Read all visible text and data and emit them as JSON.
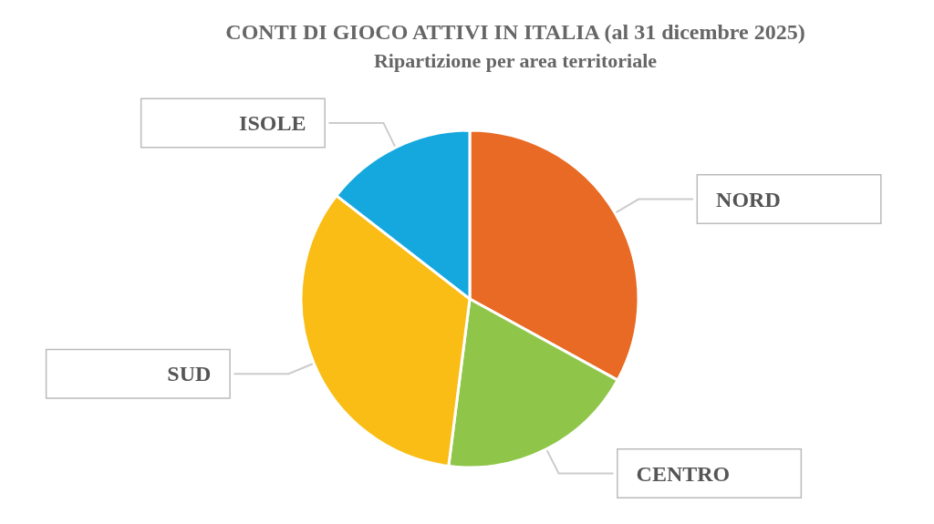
{
  "chart_data": {
    "type": "pie",
    "title": "CONTI DI GIOCO ATTIVI IN ITALIA (al 31 dicembre 2025)",
    "subtitle": "Ripartizione per area territoriale",
    "categories": [
      "NORD",
      "CENTRO",
      "SUD",
      "ISOLE"
    ],
    "values": [
      33,
      19,
      33.5,
      14.5
    ],
    "colors": [
      "#e86a24",
      "#8fc64a",
      "#f9bd16",
      "#15a8df"
    ],
    "legend": false
  }
}
